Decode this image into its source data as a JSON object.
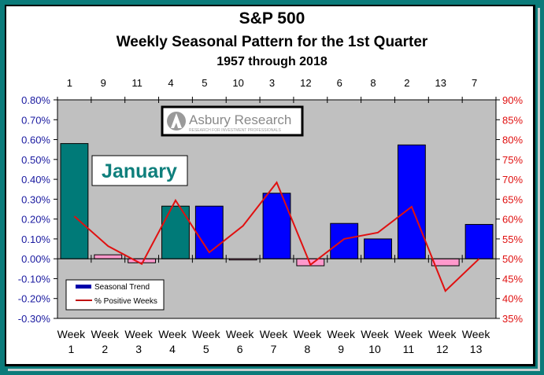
{
  "chart_data": {
    "type": "bar",
    "title": "S&P 500",
    "subtitle": "Weekly Seasonal Pattern for the 1st Quarter",
    "subtitle2": "1957 through 2018",
    "categories": [
      "Week\n1",
      "Week\n2",
      "Week\n3",
      "Week\n4",
      "Week\n5",
      "Week\n6",
      "Week\n7",
      "Week\n8",
      "Week\n9",
      "Week\n10",
      "Week\n11",
      "Week\n12",
      "Week\n13"
    ],
    "category_lines": [
      [
        "Week",
        "1"
      ],
      [
        "Week",
        "2"
      ],
      [
        "Week",
        "3"
      ],
      [
        "Week",
        "4"
      ],
      [
        "Week",
        "5"
      ],
      [
        "Week",
        "6"
      ],
      [
        "Week",
        "7"
      ],
      [
        "Week",
        "8"
      ],
      [
        "Week",
        "9"
      ],
      [
        "Week",
        "10"
      ],
      [
        "Week",
        "11"
      ],
      [
        "Week",
        "12"
      ],
      [
        "Week",
        "13"
      ]
    ],
    "rank_labels": [
      "1",
      "9",
      "11",
      "4",
      "5",
      "10",
      "3",
      "12",
      "6",
      "8",
      "2",
      "13",
      "7"
    ],
    "series": [
      {
        "name": "Seasonal Trend",
        "axis": "left",
        "type": "bar",
        "values": [
          0.58,
          0.02,
          -0.02,
          0.265,
          0.265,
          -0.005,
          0.33,
          -0.035,
          0.178,
          0.1,
          0.573,
          -0.035,
          0.173
        ],
        "colors": {
          "january": "#007a78",
          "positive": "#0000ff",
          "negative": "#ff99cc"
        }
      },
      {
        "name": "% Positive Weeks",
        "axis": "right",
        "type": "line",
        "values": [
          60.7,
          53.2,
          48.7,
          64.7,
          51.6,
          58.3,
          69.2,
          48.5,
          55.0,
          56.6,
          63.1,
          41.9,
          50.0
        ],
        "color": "#e01010"
      }
    ],
    "january_weeks": 4,
    "yleft": {
      "min": -0.3,
      "max": 0.8,
      "step": 0.1,
      "ticks": [
        "0.80%",
        "0.70%",
        "0.60%",
        "0.50%",
        "0.40%",
        "0.30%",
        "0.20%",
        "0.10%",
        "0.00%",
        "-0.10%",
        "-0.20%",
        "-0.30%"
      ],
      "color": "#1a1aa0"
    },
    "yright": {
      "min": 35,
      "max": 90,
      "step": 5,
      "ticks": [
        "90%",
        "85%",
        "80%",
        "75%",
        "70%",
        "65%",
        "60%",
        "55%",
        "50%",
        "45%",
        "40%",
        "35%"
      ],
      "color": "#e01010"
    },
    "legend": {
      "position": "bottom-left",
      "entries": [
        "Seasonal Trend",
        "% Positive Weeks"
      ]
    },
    "annotations": {
      "month": "January",
      "logo_text": "Asbury Research",
      "logo_tagline": "RESEARCH FOR INVESTMENT PROFESSIONALS"
    },
    "plot_bg": "#c0c0c0"
  }
}
